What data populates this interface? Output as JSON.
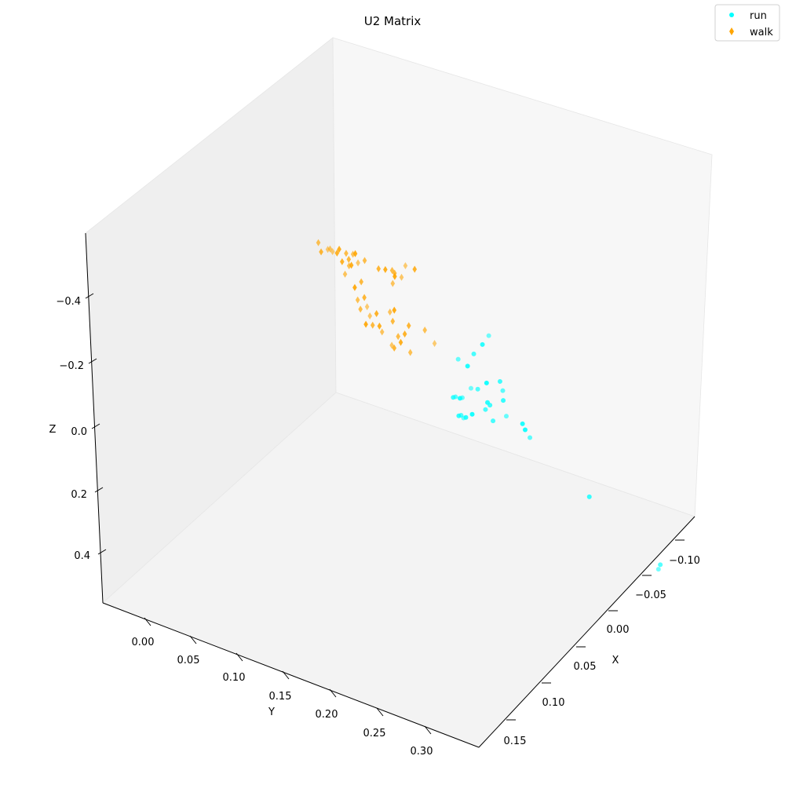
{
  "chart_data": {
    "type": "scatter",
    "projection": "3d",
    "title": "U2 Matrix",
    "xlabel": "X",
    "ylabel": "Y",
    "zlabel": "Z",
    "x_ticks": [
      "−0.10",
      "−0.05",
      "0.00",
      "0.05",
      "0.10",
      "0.15"
    ],
    "y_ticks": [
      "0.00",
      "0.05",
      "0.10",
      "0.15",
      "0.20",
      "0.25",
      "0.30"
    ],
    "z_ticks": [
      "−0.4",
      "−0.2",
      "0.0",
      "0.2",
      "0.4"
    ],
    "legend_position": "top-right",
    "series": [
      {
        "name": "run",
        "marker": "circle",
        "color": "#00ffff",
        "points": [
          [
            0.05,
            0.19,
            -0.22
          ],
          [
            0.06,
            0.19,
            -0.17
          ],
          [
            0.06,
            0.18,
            -0.13
          ],
          [
            0.07,
            0.17,
            -0.08
          ],
          [
            0.07,
            0.18,
            -0.07
          ],
          [
            0.05,
            0.2,
            -0.09
          ],
          [
            0.06,
            0.21,
            -0.05
          ],
          [
            0.07,
            0.2,
            -0.04
          ],
          [
            0.06,
            0.21,
            -0.02
          ],
          [
            0.07,
            0.19,
            -0.01
          ],
          [
            0.08,
            0.19,
            0.01
          ],
          [
            0.07,
            0.2,
            0.02
          ],
          [
            0.06,
            0.19,
            0.03
          ],
          [
            0.08,
            0.18,
            0.05
          ],
          [
            0.07,
            0.17,
            0.04
          ],
          [
            0.08,
            0.17,
            0.06
          ],
          [
            0.09,
            0.18,
            0.07
          ],
          [
            0.08,
            0.19,
            0.09
          ],
          [
            0.1,
            0.19,
            0.14
          ],
          [
            0.11,
            0.2,
            0.15
          ],
          [
            0.12,
            0.21,
            0.17
          ],
          [
            0.13,
            0.22,
            0.18
          ],
          [
            0.09,
            0.22,
            0.1
          ],
          [
            0.07,
            0.22,
            0.04
          ],
          [
            0.06,
            0.23,
            0.03
          ],
          [
            0.08,
            0.21,
            0.04
          ],
          [
            0.05,
            0.23,
            0.05
          ],
          [
            0.07,
            0.24,
            0.06
          ],
          [
            0.02,
            0.27,
            0.12
          ],
          [
            -0.04,
            0.3,
            0.16
          ],
          [
            -0.01,
            0.32,
            0.22
          ]
        ]
      },
      {
        "name": "walk",
        "marker": "diamond",
        "color": "#ffa500",
        "points": [
          [
            -0.02,
            0.05,
            -0.44
          ],
          [
            -0.02,
            0.06,
            -0.44
          ],
          [
            0.0,
            0.05,
            -0.38
          ],
          [
            0.0,
            0.06,
            -0.37
          ],
          [
            0.01,
            0.05,
            -0.36
          ],
          [
            0.01,
            0.06,
            -0.36
          ],
          [
            0.0,
            0.05,
            -0.34
          ],
          [
            0.01,
            0.06,
            -0.35
          ],
          [
            0.02,
            0.05,
            -0.34
          ],
          [
            0.04,
            0.0,
            -0.32
          ],
          [
            0.04,
            0.01,
            -0.31
          ],
          [
            0.04,
            0.02,
            -0.31
          ],
          [
            0.04,
            0.03,
            -0.32
          ],
          [
            0.05,
            0.02,
            -0.3
          ],
          [
            0.05,
            0.03,
            -0.31
          ],
          [
            0.05,
            0.04,
            -0.29
          ],
          [
            0.03,
            0.03,
            -0.34
          ],
          [
            0.04,
            0.04,
            -0.33
          ],
          [
            0.05,
            0.01,
            -0.28
          ],
          [
            0.05,
            0.04,
            -0.27
          ],
          [
            0.06,
            0.03,
            -0.28
          ],
          [
            0.06,
            0.04,
            -0.26
          ],
          [
            0.04,
            0.05,
            -0.32
          ],
          [
            0.05,
            0.05,
            -0.29
          ],
          [
            0.06,
            0.05,
            -0.26
          ],
          [
            0.06,
            0.06,
            -0.22
          ],
          [
            0.07,
            0.05,
            -0.21
          ],
          [
            0.07,
            0.06,
            -0.18
          ],
          [
            0.07,
            0.07,
            -0.16
          ],
          [
            0.08,
            0.07,
            -0.13
          ],
          [
            0.08,
            0.08,
            -0.12
          ],
          [
            0.08,
            0.09,
            -0.11
          ],
          [
            0.09,
            0.08,
            -0.09
          ],
          [
            0.09,
            0.09,
            -0.08
          ],
          [
            0.09,
            0.1,
            -0.06
          ],
          [
            0.1,
            0.1,
            -0.04
          ],
          [
            0.1,
            0.11,
            -0.03
          ],
          [
            0.11,
            0.1,
            -0.02
          ],
          [
            0.06,
            0.11,
            -0.14
          ],
          [
            0.05,
            0.12,
            -0.16
          ],
          [
            0.05,
            0.13,
            -0.13
          ],
          [
            0.08,
            0.12,
            -0.08
          ],
          [
            0.09,
            0.12,
            -0.05
          ],
          [
            0.1,
            0.12,
            0.0
          ],
          [
            0.1,
            0.13,
            -0.02
          ],
          [
            0.07,
            0.1,
            -0.12
          ],
          [
            0.06,
            0.09,
            -0.16
          ],
          [
            0.04,
            0.08,
            -0.2
          ],
          [
            0.11,
            0.13,
            0.02
          ],
          [
            0.1,
            0.14,
            0.0
          ]
        ]
      }
    ]
  }
}
